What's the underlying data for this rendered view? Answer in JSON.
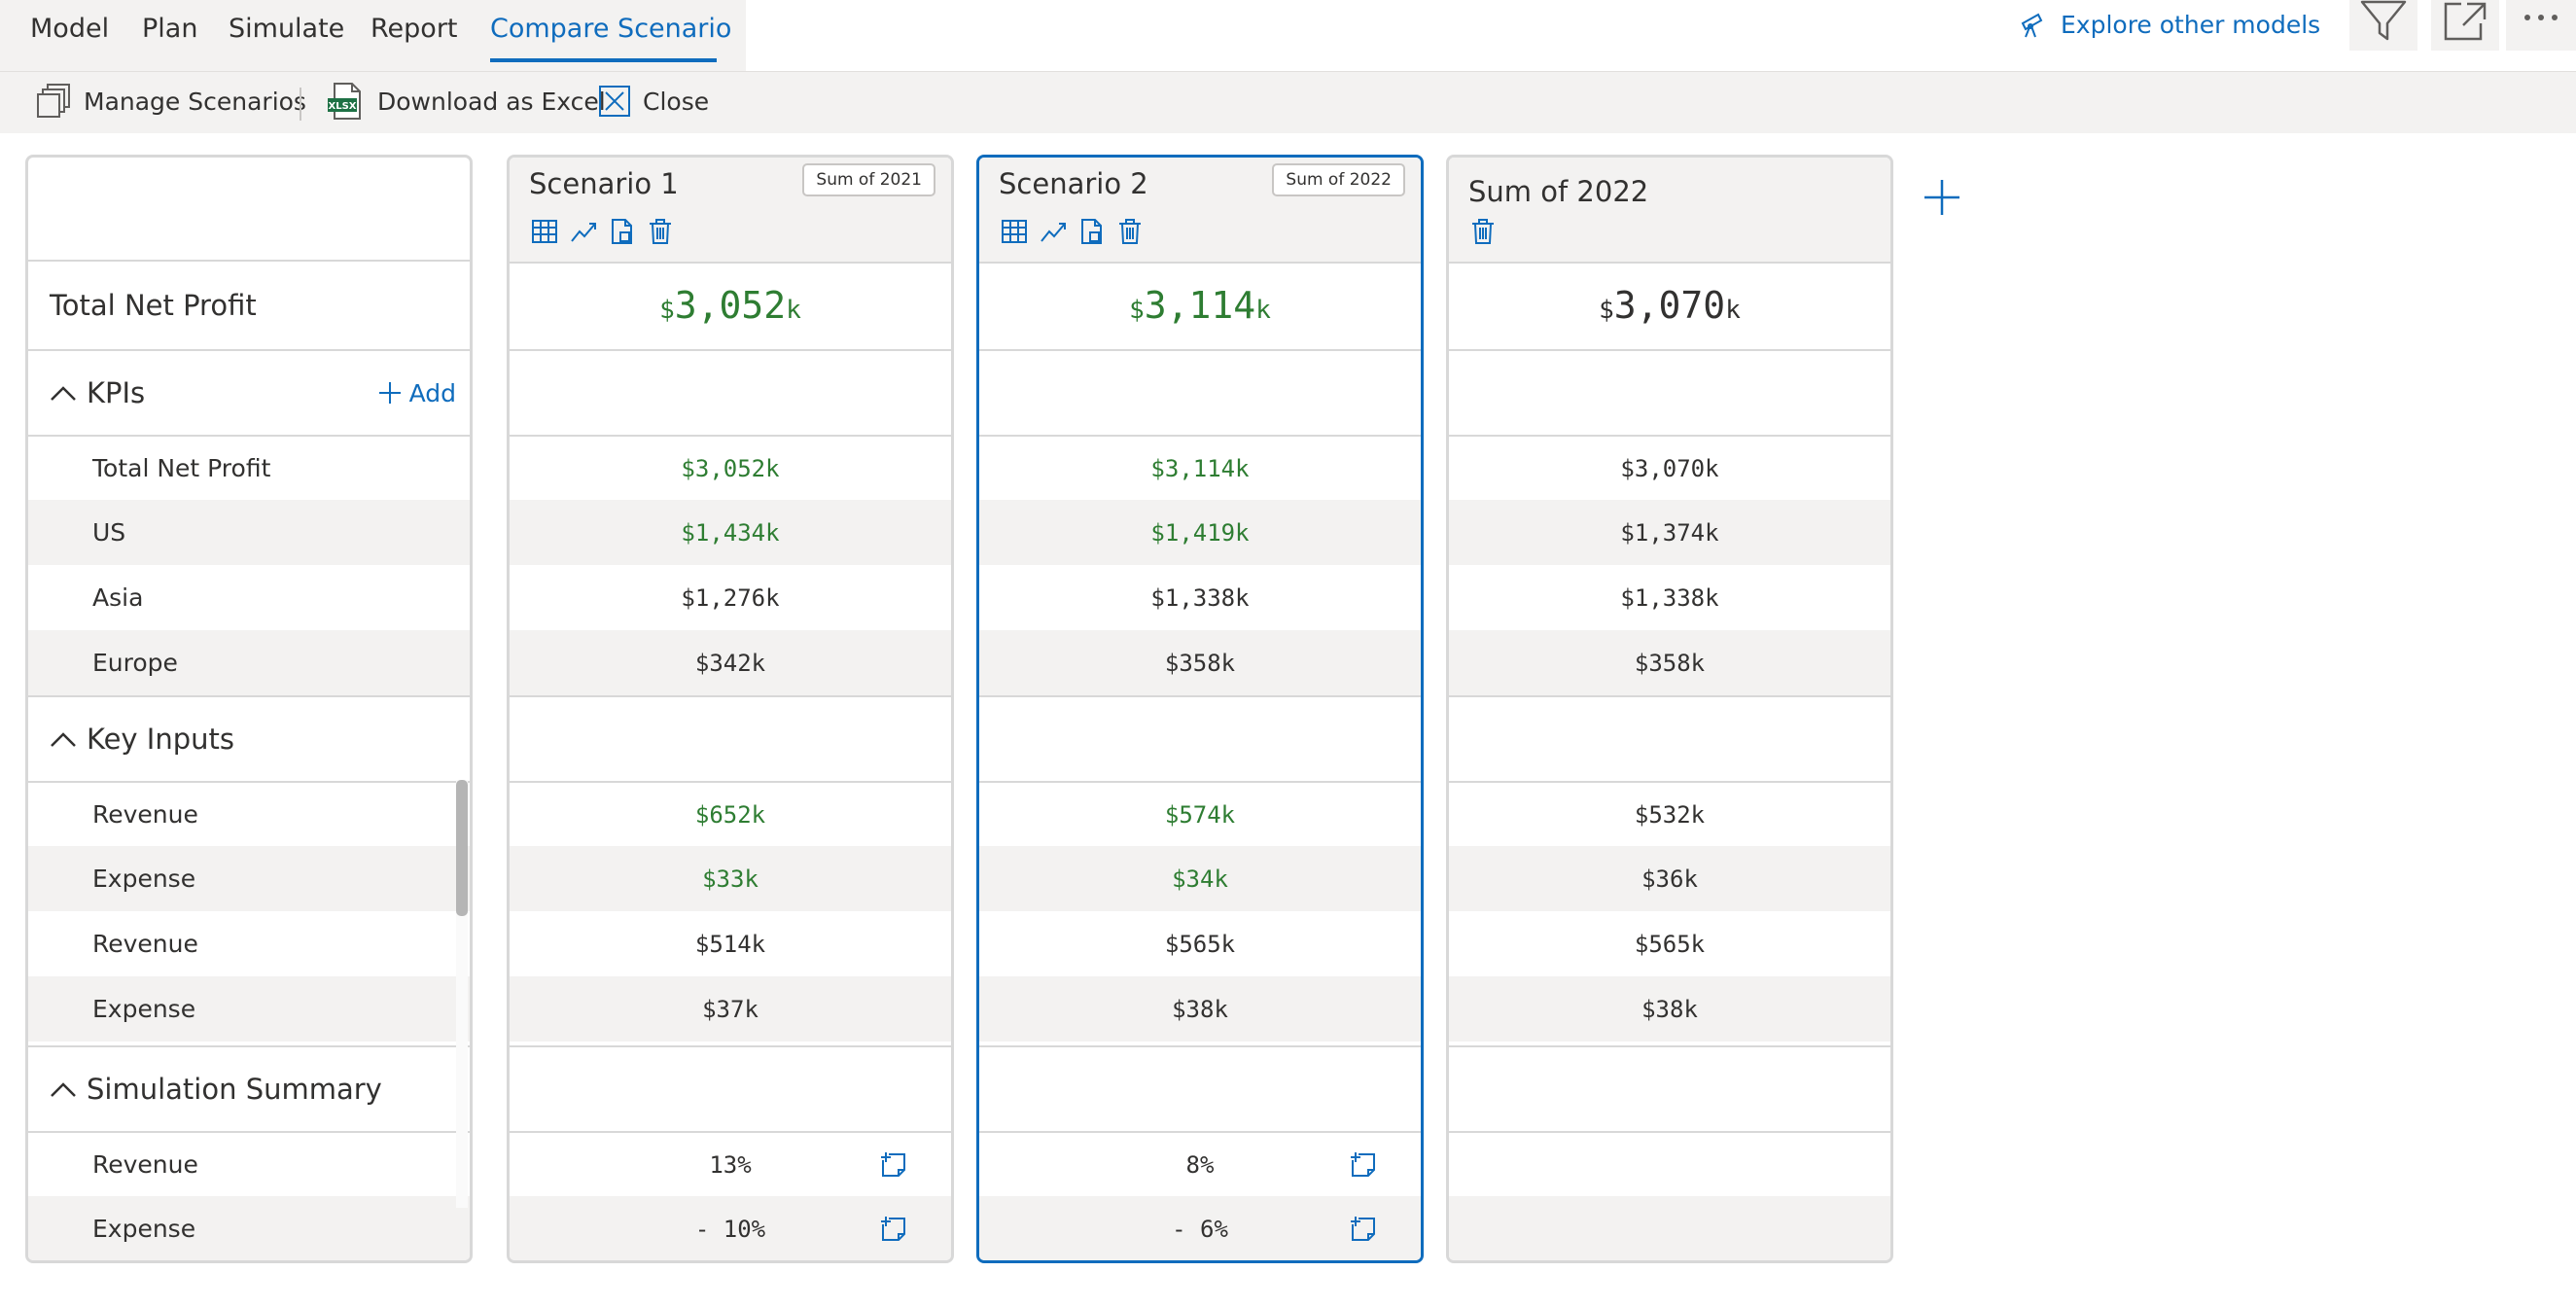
{
  "nav": {
    "tabs": [
      "Model",
      "Plan",
      "Simulate",
      "Report",
      "Compare Scenario"
    ],
    "active_tab": "Compare Scenario",
    "explore_label": "Explore other models"
  },
  "toolbar": {
    "manage_label": "Manage Scenarios",
    "download_label": "Download as Excel",
    "close_label": "Close",
    "excel_badge": "XLSX"
  },
  "labels": {
    "headline": "Total Net Profit",
    "sections": [
      {
        "title": "KPIs",
        "add_label": "Add",
        "rows": [
          "Total Net Profit",
          "US",
          "Asia",
          "Europe"
        ]
      },
      {
        "title": "Key Inputs",
        "rows": [
          "Revenue",
          "Expense",
          "Revenue",
          "Expense"
        ]
      },
      {
        "title": "Simulation Summary",
        "rows": [
          "Revenue",
          "Expense"
        ]
      }
    ]
  },
  "scenarios": [
    {
      "title": "Scenario 1",
      "badge": "Sum of 2021",
      "headline": {
        "prefix": "$",
        "value": "3,052",
        "suffix": "k"
      },
      "kpis": [
        "$3,052k",
        "$1,434k",
        "$1,276k",
        "$342k"
      ],
      "inputs": [
        "$652k",
        "$33k",
        "$514k",
        "$37k"
      ],
      "summary": [
        "13%",
        "- 10%"
      ]
    },
    {
      "title": "Scenario 2",
      "badge": "Sum of 2022",
      "headline": {
        "prefix": "$",
        "value": "3,114",
        "suffix": "k"
      },
      "kpis": [
        "$3,114k",
        "$1,419k",
        "$1,338k",
        "$358k"
      ],
      "inputs": [
        "$574k",
        "$34k",
        "$565k",
        "$38k"
      ],
      "summary": [
        "8%",
        "- 6%"
      ]
    },
    {
      "title": "Sum of 2022",
      "headline": {
        "prefix": "$",
        "value": "3,070",
        "suffix": "k"
      },
      "kpis": [
        "$3,070k",
        "$1,374k",
        "$1,338k",
        "$358k"
      ],
      "inputs": [
        "$532k",
        "$36k",
        "$565k",
        "$38k"
      ]
    }
  ],
  "colors": {
    "accent": "#0f6cbd",
    "positive": "#2e7d32",
    "panel": "#f3f2f1",
    "border": "#d8d8d8"
  }
}
